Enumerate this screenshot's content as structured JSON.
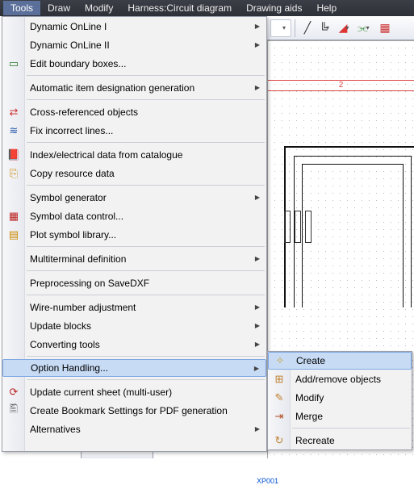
{
  "menubar": {
    "items": [
      "Tools",
      "Draw",
      "Modify",
      "Harness:Circuit diagram",
      "Drawing aids",
      "Help"
    ],
    "active_index": 0
  },
  "main_menu": {
    "groups": [
      [
        {
          "label": "Dynamic OnLine I",
          "submenu": true,
          "icon": ""
        },
        {
          "label": "Dynamic OnLine II",
          "submenu": true,
          "icon": ""
        },
        {
          "label": "Edit boundary boxes...",
          "submenu": false,
          "icon": "▭",
          "icon_color": "#2a7a2a"
        }
      ],
      [
        {
          "label": "Automatic item designation generation",
          "submenu": true,
          "icon": ""
        }
      ],
      [
        {
          "label": "Cross-referenced objects",
          "submenu": false,
          "icon": "⇄",
          "icon_color": "#c33"
        },
        {
          "label": "Fix incorrect lines...",
          "submenu": false,
          "icon": "≋",
          "icon_color": "#25a"
        }
      ],
      [
        {
          "label": "Index/electrical data from catalogue",
          "submenu": false,
          "icon": "📕",
          "icon_color": "#a33"
        },
        {
          "label": "Copy resource data",
          "submenu": false,
          "icon": "⎘",
          "icon_color": "#c80"
        }
      ],
      [
        {
          "label": "Symbol generator",
          "submenu": true,
          "icon": ""
        },
        {
          "label": "Symbol data control...",
          "submenu": false,
          "icon": "▦",
          "icon_color": "#b22"
        },
        {
          "label": "Plot symbol library...",
          "submenu": false,
          "icon": "▤",
          "icon_color": "#c80"
        }
      ],
      [
        {
          "label": "Multiterminal definition",
          "submenu": true,
          "icon": ""
        }
      ],
      [
        {
          "label": "Preprocessing on SaveDXF",
          "submenu": false,
          "icon": ""
        }
      ],
      [
        {
          "label": "Wire-number adjustment",
          "submenu": true,
          "icon": ""
        },
        {
          "label": "Update blocks",
          "submenu": true,
          "icon": ""
        },
        {
          "label": "Converting tools",
          "submenu": true,
          "icon": ""
        }
      ],
      [
        {
          "label": "Option Handling...",
          "submenu": true,
          "icon": "",
          "highlight": true
        }
      ],
      [
        {
          "label": "Update current sheet (multi-user)",
          "submenu": false,
          "icon": "⟳",
          "icon_color": "#b22"
        },
        {
          "label": "Create Bookmark Settings for PDF generation",
          "submenu": false,
          "icon": "🖺",
          "icon_color": "#555"
        },
        {
          "label": "Alternatives",
          "submenu": true,
          "icon": ""
        }
      ]
    ]
  },
  "sub_menu": {
    "items": [
      {
        "label": "Create",
        "icon": "✧",
        "icon_color": "#caa43a",
        "highlight": true
      },
      {
        "label": "Add/remove objects",
        "icon": "⊞",
        "icon_color": "#c08030"
      },
      {
        "label": "Modify",
        "icon": "✎",
        "icon_color": "#c08030"
      },
      {
        "label": "Merge",
        "icon": "⇥",
        "icon_color": "#b05028"
      }
    ],
    "items2": [
      {
        "label": "Recreate",
        "icon": "↻",
        "icon_color": "#c08030"
      }
    ]
  },
  "canvas": {
    "red_label": "2",
    "xp_label": "XP001"
  }
}
